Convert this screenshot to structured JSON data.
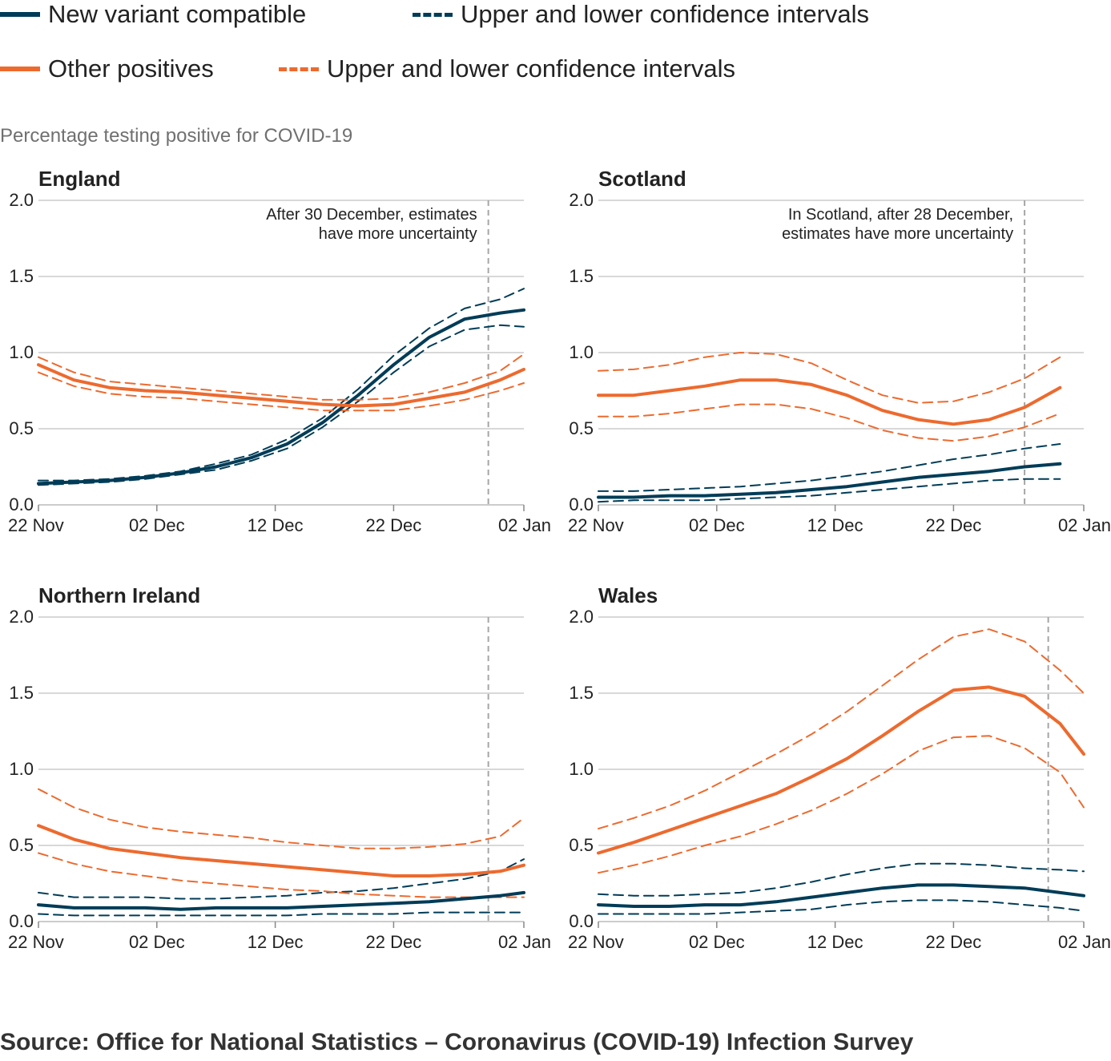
{
  "legend": [
    {
      "label": "New variant compatible",
      "color": "#003c57",
      "style": "solid"
    },
    {
      "label": "Upper and lower confidence intervals",
      "color": "#003c57",
      "style": "dashed"
    },
    {
      "label": "Other positives",
      "color": "#f66068",
      "style": "solid"
    },
    {
      "label": "Upper and lower confidence intervals",
      "color": "#f66068",
      "style": "dashed"
    }
  ],
  "colors": {
    "new_variant": "#003c57",
    "other": "#ed6a2e",
    "grid": "#cccccc",
    "reference_line": "#a6a6a6"
  },
  "unit_label": "Percentage testing positive for COVID-19",
  "source": "Source: Office for National Statistics – Coronavirus (COVID-19) Infection Survey",
  "chart_data": [
    {
      "type": "line",
      "title": "England",
      "annotation": [
        "After 30 December, estimates",
        "have more uncertainty"
      ],
      "reference_date": "30 Dec",
      "x_ticks": [
        "22 Nov",
        "02 Dec",
        "12 Dec",
        "22 Dec",
        "02 Jan"
      ],
      "y_ticks": [
        "0.0",
        "0.5",
        "1.0",
        "1.5",
        "2.0"
      ],
      "x": [
        "22 Nov",
        "25 Nov",
        "28 Nov",
        "01 Dec",
        "04 Dec",
        "07 Dec",
        "10 Dec",
        "13 Dec",
        "16 Dec",
        "19 Dec",
        "22 Dec",
        "25 Dec",
        "28 Dec",
        "31 Dec",
        "02 Jan"
      ],
      "ylim": [
        0,
        2
      ],
      "grid": true,
      "series": [
        {
          "group": "new_variant",
          "kind": "estimate",
          "values": [
            0.14,
            0.15,
            0.16,
            0.18,
            0.21,
            0.25,
            0.31,
            0.4,
            0.54,
            0.72,
            0.92,
            1.1,
            1.22,
            1.26,
            1.28
          ]
        },
        {
          "group": "new_variant",
          "kind": "ci",
          "values": [
            0.16,
            0.16,
            0.17,
            0.19,
            0.22,
            0.27,
            0.33,
            0.43,
            0.57,
            0.76,
            0.98,
            1.16,
            1.29,
            1.35,
            1.42
          ]
        },
        {
          "group": "new_variant",
          "kind": "ci",
          "values": [
            0.13,
            0.14,
            0.15,
            0.17,
            0.2,
            0.23,
            0.29,
            0.37,
            0.51,
            0.68,
            0.87,
            1.04,
            1.15,
            1.18,
            1.17
          ]
        },
        {
          "group": "other",
          "kind": "estimate",
          "values": [
            0.92,
            0.82,
            0.77,
            0.75,
            0.74,
            0.72,
            0.7,
            0.68,
            0.66,
            0.65,
            0.66,
            0.7,
            0.74,
            0.82,
            0.89
          ]
        },
        {
          "group": "other",
          "kind": "ci",
          "values": [
            0.97,
            0.87,
            0.81,
            0.79,
            0.77,
            0.75,
            0.73,
            0.71,
            0.69,
            0.69,
            0.7,
            0.74,
            0.8,
            0.88,
            0.99
          ]
        },
        {
          "group": "other",
          "kind": "ci",
          "values": [
            0.87,
            0.78,
            0.73,
            0.71,
            0.7,
            0.68,
            0.66,
            0.64,
            0.62,
            0.62,
            0.62,
            0.65,
            0.69,
            0.75,
            0.8
          ]
        }
      ]
    },
    {
      "type": "line",
      "title": "Scotland",
      "annotation": [
        "In Scotland, after 28 December,",
        "estimates have more uncertainty"
      ],
      "reference_date": "28 Dec",
      "x_ticks": [
        "22 Nov",
        "02 Dec",
        "12 Dec",
        "22 Dec",
        "02 Jan"
      ],
      "y_ticks": [
        "0.0",
        "0.5",
        "1.0",
        "1.5",
        "2.0"
      ],
      "x": [
        "22 Nov",
        "25 Nov",
        "28 Nov",
        "01 Dec",
        "04 Dec",
        "07 Dec",
        "10 Dec",
        "13 Dec",
        "16 Dec",
        "19 Dec",
        "22 Dec",
        "25 Dec",
        "28 Dec",
        "31 Dec"
      ],
      "ylim": [
        0,
        2
      ],
      "grid": true,
      "series": [
        {
          "group": "new_variant",
          "kind": "estimate",
          "values": [
            0.05,
            0.05,
            0.06,
            0.06,
            0.07,
            0.08,
            0.1,
            0.12,
            0.15,
            0.18,
            0.2,
            0.22,
            0.25,
            0.27
          ]
        },
        {
          "group": "new_variant",
          "kind": "ci",
          "values": [
            0.09,
            0.09,
            0.1,
            0.11,
            0.12,
            0.14,
            0.16,
            0.19,
            0.22,
            0.26,
            0.3,
            0.33,
            0.37,
            0.4
          ]
        },
        {
          "group": "new_variant",
          "kind": "ci",
          "values": [
            0.02,
            0.03,
            0.03,
            0.03,
            0.04,
            0.05,
            0.06,
            0.08,
            0.1,
            0.12,
            0.14,
            0.16,
            0.17,
            0.17
          ]
        },
        {
          "group": "other",
          "kind": "estimate",
          "values": [
            0.72,
            0.72,
            0.75,
            0.78,
            0.82,
            0.82,
            0.79,
            0.72,
            0.62,
            0.56,
            0.53,
            0.56,
            0.64,
            0.77
          ]
        },
        {
          "group": "other",
          "kind": "ci",
          "values": [
            0.88,
            0.89,
            0.92,
            0.97,
            1.0,
            0.99,
            0.93,
            0.82,
            0.72,
            0.67,
            0.68,
            0.74,
            0.83,
            0.97
          ]
        },
        {
          "group": "other",
          "kind": "ci",
          "values": [
            0.58,
            0.58,
            0.6,
            0.63,
            0.66,
            0.66,
            0.63,
            0.57,
            0.49,
            0.44,
            0.42,
            0.45,
            0.51,
            0.6
          ]
        }
      ]
    },
    {
      "type": "line",
      "title": "Northern Ireland",
      "annotation": [],
      "reference_date": "30 Dec",
      "x_ticks": [
        "22 Nov",
        "02 Dec",
        "12 Dec",
        "22 Dec",
        "02 Jan"
      ],
      "y_ticks": [
        "0.0",
        "0.5",
        "1.0",
        "1.5",
        "2.0"
      ],
      "x": [
        "22 Nov",
        "25 Nov",
        "28 Nov",
        "01 Dec",
        "04 Dec",
        "07 Dec",
        "10 Dec",
        "13 Dec",
        "16 Dec",
        "19 Dec",
        "22 Dec",
        "25 Dec",
        "28 Dec",
        "31 Dec",
        "02 Jan"
      ],
      "ylim": [
        0,
        2
      ],
      "grid": true,
      "series": [
        {
          "group": "new_variant",
          "kind": "estimate",
          "values": [
            0.11,
            0.09,
            0.09,
            0.09,
            0.08,
            0.09,
            0.09,
            0.09,
            0.1,
            0.11,
            0.12,
            0.13,
            0.15,
            0.17,
            0.19
          ]
        },
        {
          "group": "new_variant",
          "kind": "ci",
          "values": [
            0.19,
            0.16,
            0.16,
            0.16,
            0.15,
            0.15,
            0.16,
            0.17,
            0.19,
            0.2,
            0.22,
            0.25,
            0.28,
            0.33,
            0.41
          ]
        },
        {
          "group": "new_variant",
          "kind": "ci",
          "values": [
            0.05,
            0.04,
            0.04,
            0.04,
            0.04,
            0.04,
            0.04,
            0.04,
            0.05,
            0.05,
            0.05,
            0.06,
            0.06,
            0.06,
            0.06
          ]
        },
        {
          "group": "other",
          "kind": "estimate",
          "values": [
            0.63,
            0.54,
            0.48,
            0.45,
            0.42,
            0.4,
            0.38,
            0.36,
            0.34,
            0.32,
            0.3,
            0.3,
            0.31,
            0.33,
            0.37
          ]
        },
        {
          "group": "other",
          "kind": "ci",
          "values": [
            0.87,
            0.75,
            0.67,
            0.62,
            0.59,
            0.57,
            0.55,
            0.52,
            0.5,
            0.48,
            0.48,
            0.49,
            0.51,
            0.56,
            0.68
          ]
        },
        {
          "group": "other",
          "kind": "ci",
          "values": [
            0.45,
            0.38,
            0.33,
            0.3,
            0.27,
            0.25,
            0.23,
            0.21,
            0.2,
            0.18,
            0.17,
            0.16,
            0.16,
            0.16,
            0.16
          ]
        }
      ]
    },
    {
      "type": "line",
      "title": "Wales",
      "annotation": [],
      "reference_date": "30 Dec",
      "x_ticks": [
        "22 Nov",
        "02 Dec",
        "12 Dec",
        "22 Dec",
        "02 Jan"
      ],
      "y_ticks": [
        "0.0",
        "0.5",
        "1.0",
        "1.5",
        "2.0"
      ],
      "x": [
        "22 Nov",
        "25 Nov",
        "28 Nov",
        "01 Dec",
        "04 Dec",
        "07 Dec",
        "10 Dec",
        "13 Dec",
        "16 Dec",
        "19 Dec",
        "22 Dec",
        "25 Dec",
        "28 Dec",
        "31 Dec",
        "02 Jan"
      ],
      "ylim": [
        0,
        2
      ],
      "grid": true,
      "series": [
        {
          "group": "new_variant",
          "kind": "estimate",
          "values": [
            0.11,
            0.1,
            0.1,
            0.11,
            0.11,
            0.13,
            0.16,
            0.19,
            0.22,
            0.24,
            0.24,
            0.23,
            0.22,
            0.19,
            0.17
          ]
        },
        {
          "group": "new_variant",
          "kind": "ci",
          "values": [
            0.18,
            0.17,
            0.17,
            0.18,
            0.19,
            0.22,
            0.26,
            0.31,
            0.35,
            0.38,
            0.38,
            0.37,
            0.35,
            0.34,
            0.33
          ]
        },
        {
          "group": "new_variant",
          "kind": "ci",
          "values": [
            0.05,
            0.05,
            0.05,
            0.05,
            0.06,
            0.07,
            0.08,
            0.11,
            0.13,
            0.14,
            0.14,
            0.13,
            0.11,
            0.09,
            0.07
          ]
        },
        {
          "group": "other",
          "kind": "estimate",
          "values": [
            0.45,
            0.52,
            0.6,
            0.68,
            0.76,
            0.84,
            0.95,
            1.07,
            1.22,
            1.38,
            1.52,
            1.54,
            1.48,
            1.3,
            1.1
          ]
        },
        {
          "group": "other",
          "kind": "ci",
          "values": [
            0.61,
            0.68,
            0.76,
            0.86,
            0.98,
            1.1,
            1.23,
            1.38,
            1.55,
            1.72,
            1.87,
            1.92,
            1.84,
            1.65,
            1.5
          ]
        },
        {
          "group": "other",
          "kind": "ci",
          "values": [
            0.32,
            0.37,
            0.43,
            0.5,
            0.56,
            0.64,
            0.73,
            0.84,
            0.97,
            1.12,
            1.21,
            1.22,
            1.14,
            0.98,
            0.75
          ]
        }
      ]
    }
  ]
}
